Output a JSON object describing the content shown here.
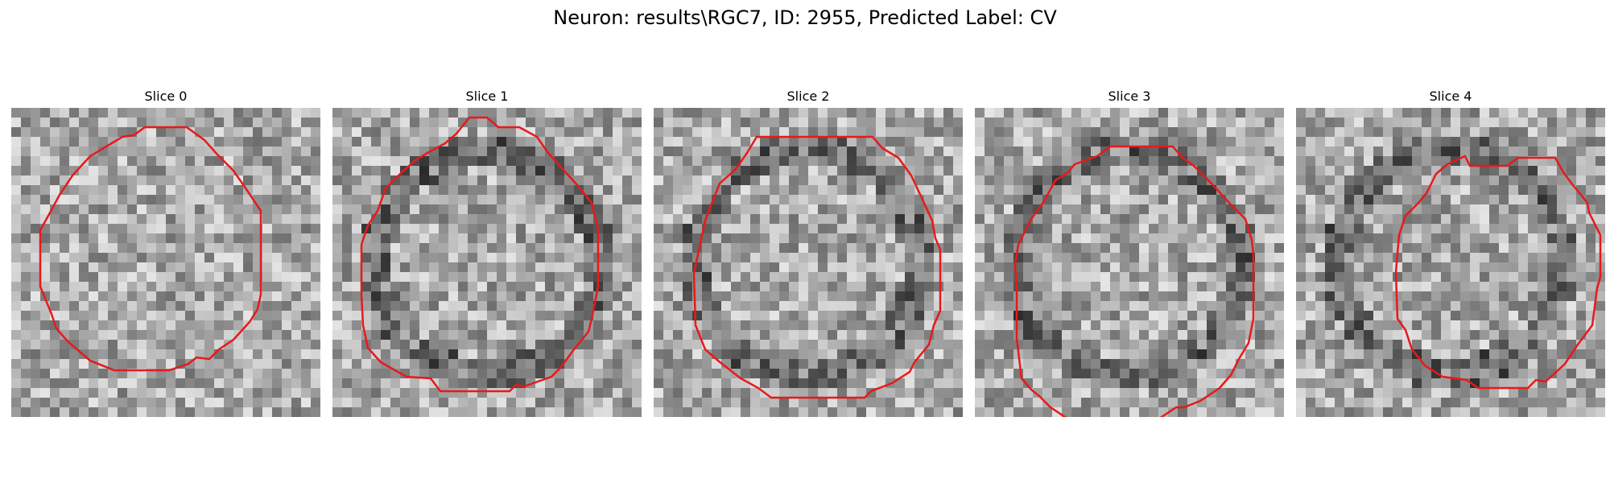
{
  "figure": {
    "title": "Neuron: results\\RGC7, ID: 2955, Predicted Label: CV",
    "contour_color": "#e8191a",
    "colormap": "gray"
  },
  "panels": [
    {
      "title": "Slice 0",
      "seed": 11,
      "dark_ring": false
    },
    {
      "title": "Slice 1",
      "seed": 23,
      "dark_ring": true
    },
    {
      "title": "Slice 2",
      "seed": 37,
      "dark_ring": true
    },
    {
      "title": "Slice 3",
      "seed": 41,
      "dark_ring": true
    },
    {
      "title": "Slice 4",
      "seed": 59,
      "dark_ring": true
    }
  ]
}
